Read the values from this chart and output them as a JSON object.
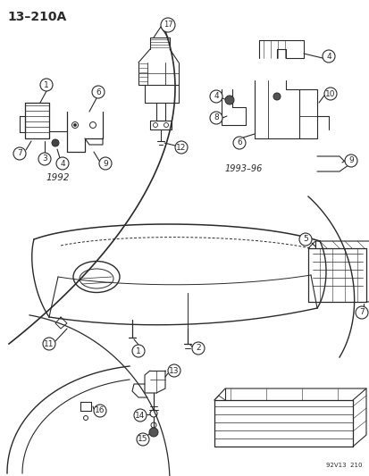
{
  "title": "13–210A",
  "footer": "92V13  210",
  "background_color": "#ffffff",
  "line_color": "#2a2a2a",
  "label_1992": "1992",
  "label_1993": "1993–96",
  "fig_width": 4.14,
  "fig_height": 5.33,
  "dpi": 100
}
